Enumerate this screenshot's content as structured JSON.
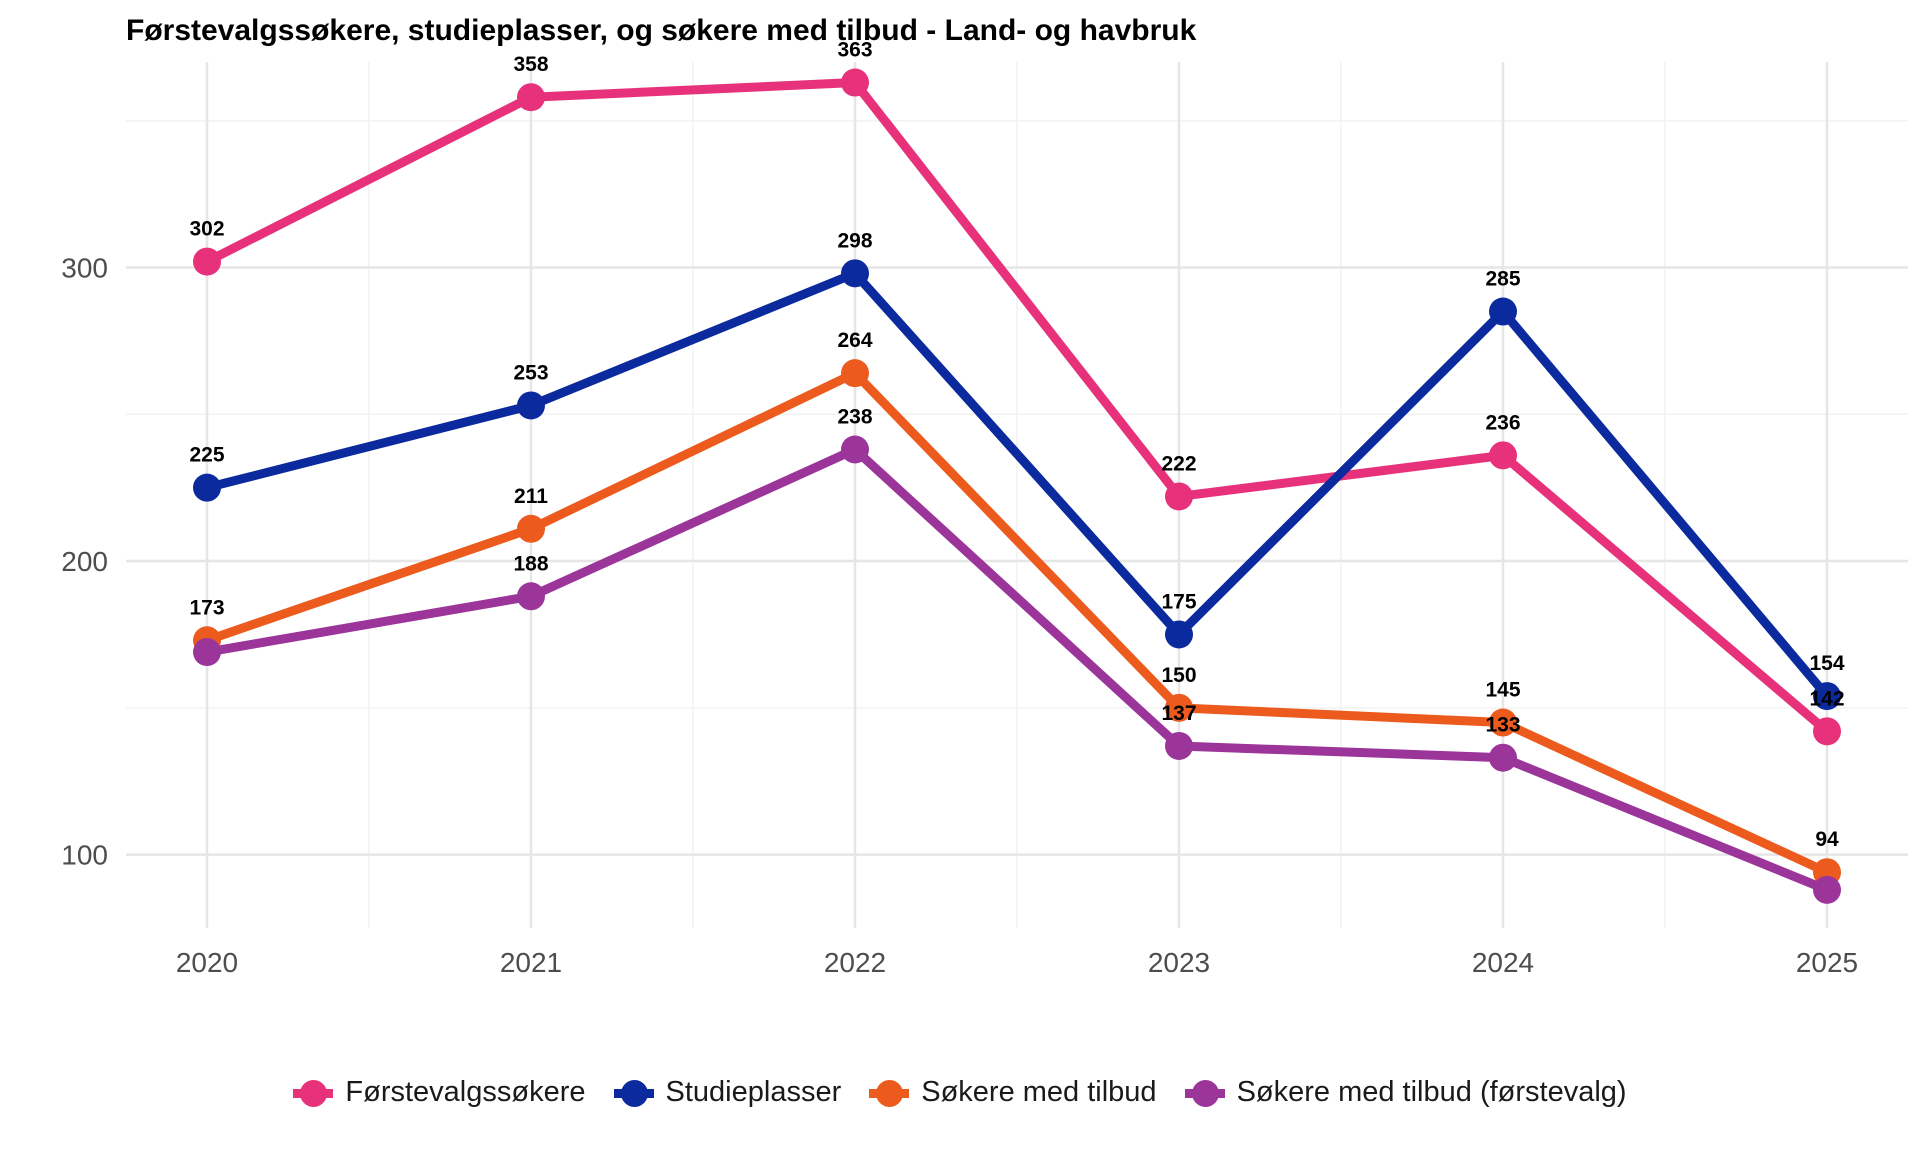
{
  "chart_data": {
    "type": "line",
    "title": "Førstevalgssøkere, studieplasser, og søkere med tilbud - Land- og havbruk",
    "xlabel": "",
    "ylabel": "",
    "x": [
      "2020",
      "2021",
      "2022",
      "2023",
      "2024",
      "2025"
    ],
    "ylim": [
      75,
      370
    ],
    "yticks": [
      100,
      200,
      300
    ],
    "grid": true,
    "legend_position": "bottom",
    "series": [
      {
        "name": "Førstevalgssøkere",
        "color": "#E7317A",
        "values": [
          302,
          358,
          363,
          222,
          236,
          142
        ],
        "labels": [
          "302",
          "358",
          "363",
          "222",
          "236",
          "142"
        ]
      },
      {
        "name": "Studieplasser",
        "color": "#0A2A9E",
        "values": [
          225,
          253,
          298,
          175,
          285,
          154
        ],
        "labels": [
          "225",
          "253",
          "298",
          "175",
          "285",
          "154"
        ]
      },
      {
        "name": "Søkere med tilbud",
        "color": "#EC5A1E",
        "values": [
          173,
          211,
          264,
          150,
          145,
          94
        ],
        "labels": [
          "173",
          "211",
          "264",
          "150",
          "145",
          "94"
        ]
      },
      {
        "name": "Søkere med tilbud (førstevalg)",
        "color": "#9B359A",
        "values": [
          169,
          188,
          238,
          137,
          133,
          88
        ],
        "labels": [
          "",
          "188",
          "238",
          "137",
          "133",
          ""
        ]
      }
    ]
  }
}
